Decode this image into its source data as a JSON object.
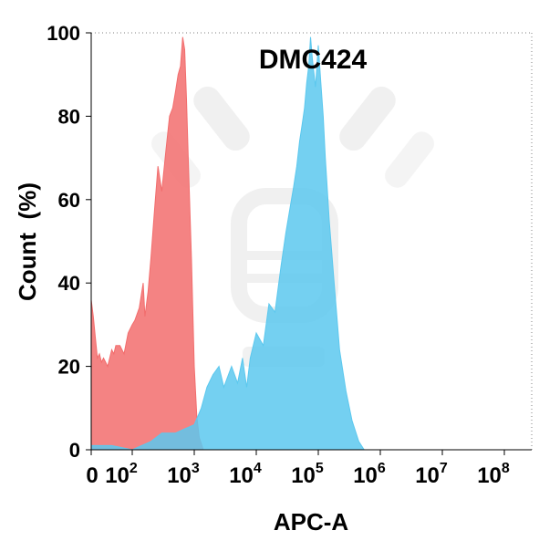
{
  "chart_data": {
    "type": "area",
    "title": "DMC424",
    "xlabel": "APC-A",
    "ylabel": "Count  (%)",
    "x_scale": "biexponential",
    "x_ticks": [
      {
        "base": "0",
        "exp": ""
      },
      {
        "base": "10",
        "exp": "2"
      },
      {
        "base": "10",
        "exp": "3"
      },
      {
        "base": "10",
        "exp": "4"
      },
      {
        "base": "10",
        "exp": "5"
      },
      {
        "base": "10",
        "exp": "6"
      },
      {
        "base": "10",
        "exp": "7"
      },
      {
        "base": "10",
        "exp": "8"
      }
    ],
    "ylim": [
      0,
      100
    ],
    "y_ticks": [
      0,
      20,
      40,
      60,
      80,
      100
    ],
    "grid": false,
    "series": [
      {
        "color": "#f26d6d",
        "opacity": 0.85,
        "points": [
          [
            0,
            36
          ],
          [
            5,
            32
          ],
          [
            10,
            27
          ],
          [
            15,
            22
          ],
          [
            20,
            23
          ],
          [
            25,
            21
          ],
          [
            30,
            22
          ],
          [
            35,
            21
          ],
          [
            40,
            20
          ],
          [
            45,
            22
          ],
          [
            50,
            24
          ],
          [
            55,
            23
          ],
          [
            60,
            25
          ],
          [
            70,
            25
          ],
          [
            80,
            23
          ],
          [
            90,
            28
          ],
          [
            100,
            30
          ],
          [
            110,
            31
          ],
          [
            130,
            34
          ],
          [
            150,
            40
          ],
          [
            160,
            32
          ],
          [
            180,
            38
          ],
          [
            200,
            46
          ],
          [
            230,
            58
          ],
          [
            260,
            68
          ],
          [
            300,
            62
          ],
          [
            350,
            72
          ],
          [
            400,
            80
          ],
          [
            450,
            82
          ],
          [
            500,
            86
          ],
          [
            550,
            90
          ],
          [
            600,
            92
          ],
          [
            650,
            99
          ],
          [
            700,
            96
          ],
          [
            750,
            84
          ],
          [
            800,
            70
          ],
          [
            900,
            46
          ],
          [
            1000,
            20
          ],
          [
            1100,
            8
          ],
          [
            1200,
            3
          ],
          [
            1400,
            0
          ]
        ]
      },
      {
        "color": "#5cc8ee",
        "opacity": 0.85,
        "points": [
          [
            0,
            1
          ],
          [
            50,
            1
          ],
          [
            100,
            0
          ],
          [
            200,
            2
          ],
          [
            300,
            4
          ],
          [
            500,
            4
          ],
          [
            700,
            5
          ],
          [
            1000,
            6
          ],
          [
            1300,
            10
          ],
          [
            1600,
            15
          ],
          [
            2000,
            18
          ],
          [
            2500,
            20
          ],
          [
            3000,
            15
          ],
          [
            4000,
            20
          ],
          [
            5000,
            16
          ],
          [
            6000,
            22
          ],
          [
            7000,
            15
          ],
          [
            8000,
            22
          ],
          [
            10000,
            28
          ],
          [
            13000,
            25
          ],
          [
            16000,
            35
          ],
          [
            20000,
            33
          ],
          [
            25000,
            44
          ],
          [
            30000,
            52
          ],
          [
            35000,
            58
          ],
          [
            40000,
            63
          ],
          [
            45000,
            68
          ],
          [
            50000,
            74
          ],
          [
            55000,
            78
          ],
          [
            60000,
            82
          ],
          [
            65000,
            88
          ],
          [
            70000,
            92
          ],
          [
            75000,
            99
          ],
          [
            80000,
            94
          ],
          [
            90000,
            87
          ],
          [
            100000,
            97
          ],
          [
            110000,
            88
          ],
          [
            120000,
            80
          ],
          [
            130000,
            70
          ],
          [
            150000,
            55
          ],
          [
            180000,
            40
          ],
          [
            220000,
            24
          ],
          [
            280000,
            14
          ],
          [
            350000,
            7
          ],
          [
            450000,
            2
          ],
          [
            550000,
            0
          ]
        ]
      }
    ]
  }
}
